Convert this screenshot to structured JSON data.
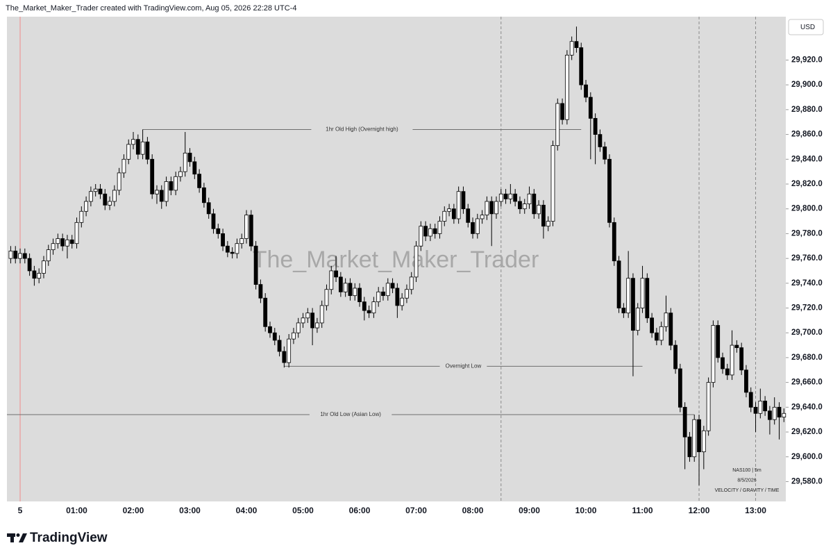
{
  "header": {
    "text": "The_Market_Maker_Trader created with TradingView.com, Aug 05, 2026 22:28 UTC-4"
  },
  "footer": {
    "brand": "TradingView"
  },
  "chart_data": {
    "type": "candlestick",
    "watermark": "The_Market_Maker_Trader",
    "currency": "USD",
    "info": [
      "NAS100  |  5m",
      "8/5/2026",
      "VELOCITY / GRAVITY / TIME"
    ],
    "x": [
      "23:50",
      "23:55",
      "00:00",
      "00:05",
      "00:10",
      "00:15",
      "00:20",
      "00:25",
      "00:30",
      "00:35",
      "00:40",
      "00:45",
      "00:50",
      "00:55",
      "01:00",
      "01:05",
      "01:10",
      "01:15",
      "01:20",
      "01:25",
      "01:30",
      "01:35",
      "01:40",
      "01:45",
      "01:50",
      "01:55",
      "02:00",
      "02:05",
      "02:10",
      "02:15",
      "02:20",
      "02:25",
      "02:30",
      "02:35",
      "02:40",
      "02:45",
      "02:50",
      "02:55",
      "03:00",
      "03:05",
      "03:10",
      "03:15",
      "03:20",
      "03:25",
      "03:30",
      "03:35",
      "03:40",
      "03:45",
      "03:50",
      "03:55",
      "04:00",
      "04:05",
      "04:10",
      "04:15",
      "04:20",
      "04:25",
      "04:30",
      "04:35",
      "04:40",
      "04:45",
      "04:50",
      "04:55",
      "05:00",
      "05:05",
      "05:10",
      "05:15",
      "05:20",
      "05:25",
      "05:30",
      "05:35",
      "05:40",
      "05:45",
      "05:50",
      "05:55",
      "06:00",
      "06:05",
      "06:10",
      "06:15",
      "06:20",
      "06:25",
      "06:30",
      "06:35",
      "06:40",
      "06:45",
      "06:50",
      "06:55",
      "07:00",
      "07:05",
      "07:10",
      "07:15",
      "07:20",
      "07:25",
      "07:30",
      "07:35",
      "07:40",
      "07:45",
      "07:50",
      "07:55",
      "08:00",
      "08:05",
      "08:10",
      "08:15",
      "08:20",
      "08:25",
      "08:30",
      "08:35",
      "08:40",
      "08:45",
      "08:50",
      "08:55",
      "09:00",
      "09:05",
      "09:10",
      "09:15",
      "09:20",
      "09:25",
      "09:30",
      "09:35",
      "09:40",
      "09:45",
      "09:50",
      "09:55",
      "10:00",
      "10:05",
      "10:10",
      "10:15",
      "10:20",
      "10:25",
      "10:30",
      "10:35",
      "10:40",
      "10:45",
      "10:50",
      "10:55",
      "11:00",
      "11:05",
      "11:10",
      "11:15",
      "11:20",
      "11:25",
      "11:30",
      "11:35",
      "11:40",
      "11:45",
      "11:50",
      "11:55",
      "12:00",
      "12:05",
      "12:10",
      "12:15",
      "12:20",
      "12:25",
      "12:30",
      "12:35",
      "12:40",
      "12:45",
      "12:50",
      "12:55",
      "13:00",
      "13:05",
      "13:10",
      "13:15",
      "13:20",
      "13:25",
      "13:30"
    ],
    "open": [
      29760,
      29766,
      29760,
      29764,
      29760,
      29750,
      29744,
      29748,
      29758,
      29767,
      29772,
      29776,
      29770,
      29775,
      29772,
      29789,
      29798,
      29806,
      29814,
      29816,
      29812,
      29803,
      29806,
      29815,
      29829,
      29840,
      29852,
      29856,
      29844,
      29854,
      29840,
      29812,
      29815,
      29806,
      29822,
      29815,
      29826,
      29830,
      29845,
      29838,
      29828,
      29817,
      29805,
      29796,
      29784,
      29780,
      29770,
      29765,
      29764,
      29772,
      29776,
      29795,
      29770,
      29739,
      29728,
      29705,
      29700,
      29694,
      29685,
      29676,
      29695,
      29700,
      29708,
      29712,
      29716,
      29704,
      29708,
      29722,
      29735,
      29750,
      29745,
      29733,
      29740,
      29730,
      29736,
      29725,
      29718,
      29716,
      29725,
      29733,
      29730,
      29740,
      29736,
      29722,
      29728,
      29735,
      29745,
      29770,
      29786,
      29778,
      29784,
      29780,
      29790,
      29798,
      29800,
      29792,
      29814,
      29800,
      29789,
      29780,
      29792,
      29795,
      29806,
      29796,
      29806,
      29812,
      29808,
      29812,
      29806,
      29800,
      29804,
      29812,
      29796,
      29803,
      29786,
      29790,
      29851,
      29885,
      29872,
      29924,
      29935,
      29930,
      29900,
      29890,
      29873,
      29860,
      29850,
      29840,
      29789,
      29758,
      29720,
      29716,
      29744,
      29702,
      29720,
      29744,
      29712,
      29700,
      29694,
      29705,
      29716,
      29690,
      29671,
      29640,
      29616,
      29600,
      29630,
      29604,
      29621,
      29660,
      29706,
      29680,
      29671,
      29666,
      29690,
      29688,
      29670,
      29652,
      29640,
      29635,
      29645,
      29637,
      29630,
      29640,
      29632
    ],
    "high": [
      29770,
      29770,
      29768,
      29768,
      29764,
      29754,
      29752,
      29762,
      29771,
      29776,
      29780,
      29780,
      29779,
      29779,
      29793,
      29802,
      29810,
      29818,
      29820,
      29820,
      29816,
      29810,
      29819,
      29833,
      29844,
      29856,
      29862,
      29860,
      29864,
      29858,
      29844,
      29819,
      29819,
      29826,
      29826,
      29830,
      29834,
      29862,
      29849,
      29842,
      29832,
      29821,
      29809,
      29800,
      29788,
      29784,
      29774,
      29769,
      29776,
      29780,
      29799,
      29799,
      29774,
      29743,
      29732,
      29709,
      29704,
      29698,
      29689,
      29699,
      29704,
      29712,
      29716,
      29720,
      29720,
      29712,
      29726,
      29739,
      29754,
      29762,
      29749,
      29744,
      29744,
      29740,
      29740,
      29729,
      29722,
      29729,
      29737,
      29737,
      29744,
      29744,
      29740,
      29732,
      29739,
      29749,
      29774,
      29790,
      29790,
      29788,
      29788,
      29794,
      29802,
      29804,
      29804,
      29818,
      29818,
      29804,
      29793,
      29796,
      29799,
      29810,
      29810,
      29810,
      29816,
      29816,
      29820,
      29816,
      29810,
      29808,
      29818,
      29816,
      29807,
      29807,
      29794,
      29855,
      29889,
      29889,
      29928,
      29939,
      29947,
      29934,
      29904,
      29894,
      29877,
      29864,
      29854,
      29844,
      29793,
      29762,
      29724,
      29766,
      29748,
      29724,
      29754,
      29748,
      29716,
      29704,
      29709,
      29730,
      29720,
      29694,
      29675,
      29644,
      29620,
      29634,
      29634,
      29625,
      29664,
      29710,
      29710,
      29684,
      29675,
      29702,
      29694,
      29692,
      29674,
      29656,
      29644,
      29655,
      29649,
      29641,
      29648,
      29644,
      29639
    ],
    "low": [
      29756,
      29756,
      29756,
      29756,
      29746,
      29738,
      29740,
      29744,
      29754,
      29763,
      29768,
      29766,
      29760,
      29768,
      29768,
      29785,
      29794,
      29802,
      29810,
      29808,
      29799,
      29799,
      29802,
      29811,
      29825,
      29836,
      29848,
      29840,
      29840,
      29836,
      29808,
      29804,
      29800,
      29802,
      29811,
      29811,
      29822,
      29826,
      29834,
      29824,
      29813,
      29801,
      29792,
      29780,
      29776,
      29766,
      29761,
      29760,
      29760,
      29768,
      29772,
      29766,
      29735,
      29724,
      29701,
      29696,
      29690,
      29681,
      29672,
      29672,
      29691,
      29696,
      29704,
      29708,
      29690,
      29700,
      29704,
      29718,
      29731,
      29741,
      29729,
      29729,
      29726,
      29726,
      29721,
      29710,
      29712,
      29712,
      29721,
      29726,
      29726,
      29732,
      29712,
      29718,
      29724,
      29731,
      29741,
      29766,
      29774,
      29774,
      29776,
      29776,
      29786,
      29794,
      29788,
      29788,
      29796,
      29785,
      29776,
      29776,
      29788,
      29791,
      29770,
      29792,
      29802,
      29804,
      29804,
      29802,
      29796,
      29796,
      29800,
      29792,
      29792,
      29776,
      29782,
      29786,
      29847,
      29868,
      29868,
      29920,
      29926,
      29896,
      29886,
      29840,
      29836,
      29846,
      29836,
      29785,
      29754,
      29716,
      29712,
      29712,
      29665,
      29698,
      29716,
      29708,
      29696,
      29690,
      29690,
      29701,
      29686,
      29667,
      29636,
      29590,
      29596,
      29596,
      29577,
      29590,
      29617,
      29656,
      29676,
      29667,
      29662,
      29662,
      29684,
      29666,
      29648,
      29636,
      29620,
      29631,
      29633,
      29618,
      29626,
      29614,
      29628
    ],
    "close": [
      29766,
      29760,
      29764,
      29760,
      29750,
      29744,
      29748,
      29758,
      29767,
      29772,
      29776,
      29770,
      29775,
      29772,
      29789,
      29798,
      29806,
      29814,
      29816,
      29812,
      29803,
      29806,
      29815,
      29829,
      29840,
      29852,
      29856,
      29844,
      29854,
      29840,
      29812,
      29815,
      29806,
      29822,
      29815,
      29826,
      29830,
      29845,
      29838,
      29828,
      29817,
      29805,
      29796,
      29784,
      29780,
      29770,
      29765,
      29764,
      29772,
      29776,
      29795,
      29770,
      29739,
      29728,
      29705,
      29700,
      29694,
      29685,
      29676,
      29695,
      29700,
      29708,
      29712,
      29716,
      29704,
      29708,
      29722,
      29735,
      29750,
      29745,
      29733,
      29740,
      29730,
      29736,
      29725,
      29718,
      29716,
      29725,
      29733,
      29730,
      29740,
      29736,
      29722,
      29728,
      29735,
      29745,
      29770,
      29786,
      29778,
      29784,
      29780,
      29790,
      29798,
      29800,
      29792,
      29814,
      29800,
      29789,
      29780,
      29792,
      29795,
      29806,
      29796,
      29806,
      29812,
      29808,
      29812,
      29806,
      29800,
      29804,
      29812,
      29796,
      29803,
      29786,
      29790,
      29851,
      29885,
      29872,
      29924,
      29935,
      29930,
      29900,
      29890,
      29873,
      29860,
      29850,
      29840,
      29789,
      29758,
      29720,
      29716,
      29744,
      29702,
      29720,
      29744,
      29712,
      29700,
      29694,
      29705,
      29716,
      29690,
      29671,
      29640,
      29616,
      29600,
      29630,
      29604,
      29621,
      29660,
      29706,
      29680,
      29671,
      29666,
      29690,
      29688,
      29670,
      29652,
      29640,
      29635,
      29645,
      29637,
      29630,
      29640,
      29632,
      29635
    ],
    "up_color": "#ffffff",
    "down_color": "#000000",
    "wick_color": "#000000",
    "xlim": [
      "23:46",
      "13:32"
    ],
    "xticks": [
      {
        "value": "00:00",
        "label": "5"
      },
      "01:00",
      "02:00",
      "03:00",
      "04:00",
      "05:00",
      "06:00",
      "07:00",
      "08:00",
      "09:00",
      "10:00",
      "11:00",
      "12:00",
      "13:00"
    ],
    "ylim": [
      29564,
      29955
    ],
    "yticks": [
      {
        "value": 29580,
        "label": "29,580.0"
      },
      {
        "value": 29600,
        "label": "29,600.0"
      },
      {
        "value": 29620,
        "label": "29,620.0"
      },
      {
        "value": 29640,
        "label": "29,640.0"
      },
      {
        "value": 29660,
        "label": "29,660.0"
      },
      {
        "value": 29680,
        "label": "29,680.0"
      },
      {
        "value": 29700,
        "label": "29,700.0"
      },
      {
        "value": 29720,
        "label": "29,720.0"
      },
      {
        "value": 29740,
        "label": "29,740.0"
      },
      {
        "value": 29760,
        "label": "29,760.0"
      },
      {
        "value": 29780,
        "label": "29,780.0"
      },
      {
        "value": 29800,
        "label": "29,800.0"
      },
      {
        "value": 29820,
        "label": "29,820.0"
      },
      {
        "value": 29840,
        "label": "29,840.0"
      },
      {
        "value": 29860,
        "label": "29,860.0"
      },
      {
        "value": 29880,
        "label": "29,880.0"
      },
      {
        "value": 29900,
        "label": "29,900.0"
      },
      {
        "value": 29920,
        "label": "29,920.0"
      }
    ],
    "levels": [
      {
        "label": "1hr Old  High (Overnight high)",
        "value": 29864,
        "from": "02:10",
        "to": "09:55"
      },
      {
        "label": "Overnight Low",
        "value": 29673,
        "from": "04:40",
        "to": "11:00"
      },
      {
        "label": "1hr Old  Low (Asian Low)",
        "value": 29634,
        "from": "23:46",
        "to": "11:55"
      }
    ],
    "session_lines": [
      "08:30",
      "12:00",
      "13:00"
    ],
    "day_break": "00:00",
    "background": "#dcdcdc"
  }
}
